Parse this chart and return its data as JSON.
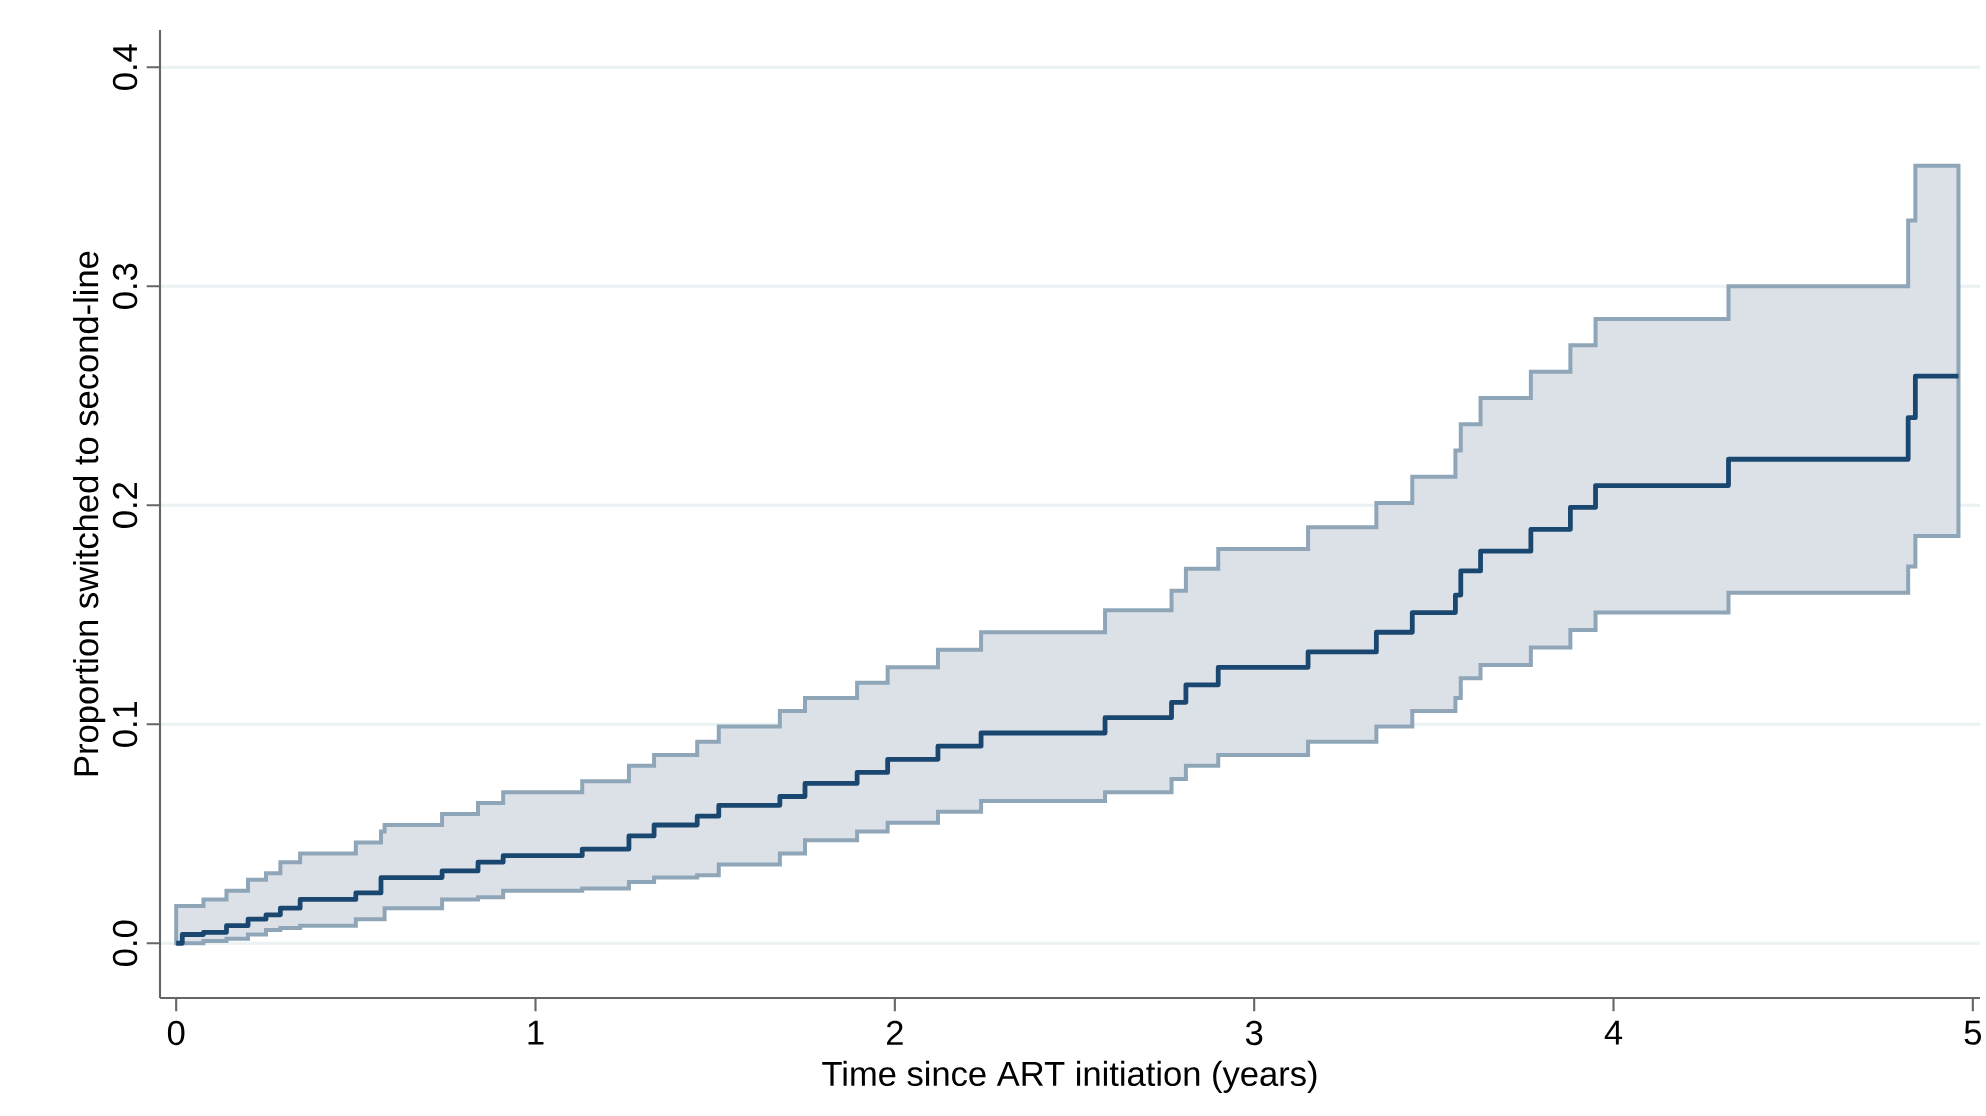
{
  "chart_data": {
    "type": "step",
    "xlabel": "Time since ART initiation (years)",
    "ylabel": "Proportion switched to second-line",
    "x": [
      0,
      0.017,
      0.076,
      0.14,
      0.2,
      0.25,
      0.29,
      0.345,
      0.5,
      0.57,
      0.58,
      0.74,
      0.84,
      0.91,
      1.13,
      1.26,
      1.33,
      1.45,
      1.51,
      1.68,
      1.75,
      1.895,
      1.98,
      2.12,
      2.24,
      2.585,
      2.77,
      2.81,
      2.9,
      3.15,
      3.34,
      3.44,
      3.56,
      3.575,
      3.63,
      3.77,
      3.88,
      3.95,
      4.32,
      4.82,
      4.84,
      4.96
    ],
    "series": [
      {
        "color": "#1a476f",
        "values": [
          0,
          0.004,
          0.005,
          0.008,
          0.011,
          0.013,
          0.016,
          0.02,
          0.023,
          0.03,
          0.03,
          0.033,
          0.037,
          0.04,
          0.043,
          0.049,
          0.054,
          0.058,
          0.063,
          0.067,
          0.073,
          0.078,
          0.084,
          0.09,
          0.096,
          0.103,
          0.11,
          0.118,
          0.126,
          0.133,
          0.142,
          0.151,
          0.159,
          0.17,
          0.179,
          0.189,
          0.199,
          0.209,
          0.221,
          0.24,
          0.259,
          0.259
        ],
        "lower": [
          0,
          0,
          0.001,
          0.002,
          0.004,
          0.006,
          0.007,
          0.008,
          0.011,
          0.011,
          0.016,
          0.02,
          0.021,
          0.024,
          0.025,
          0.028,
          0.03,
          0.031,
          0.036,
          0.041,
          0.047,
          0.051,
          0.055,
          0.06,
          0.065,
          0.069,
          0.075,
          0.081,
          0.086,
          0.092,
          0.099,
          0.106,
          0.112,
          0.121,
          0.127,
          0.135,
          0.143,
          0.151,
          0.16,
          0.172,
          0.186,
          0.186
        ],
        "upper": [
          0.017,
          0.017,
          0.02,
          0.024,
          0.029,
          0.032,
          0.037,
          0.041,
          0.046,
          0.051,
          0.054,
          0.059,
          0.064,
          0.069,
          0.074,
          0.081,
          0.086,
          0.092,
          0.099,
          0.106,
          0.112,
          0.119,
          0.126,
          0.134,
          0.142,
          0.152,
          0.161,
          0.171,
          0.18,
          0.19,
          0.201,
          0.213,
          0.225,
          0.237,
          0.249,
          0.261,
          0.273,
          0.285,
          0.3,
          0.33,
          0.355,
          0.355
        ]
      }
    ],
    "xlim": [
      -0.045,
      5.02
    ],
    "ylim": [
      -0.025,
      0.417
    ],
    "xticks": [
      0,
      1,
      2,
      3,
      4,
      5
    ],
    "yticks": [
      {
        "value": 0,
        "label": "0.0"
      },
      {
        "value": 0.1,
        "label": "0.1"
      },
      {
        "value": 0.2,
        "label": "0.2"
      },
      {
        "value": 0.3,
        "label": "0.3"
      },
      {
        "value": 0.4,
        "label": "0.4"
      }
    ],
    "grid": "y"
  }
}
